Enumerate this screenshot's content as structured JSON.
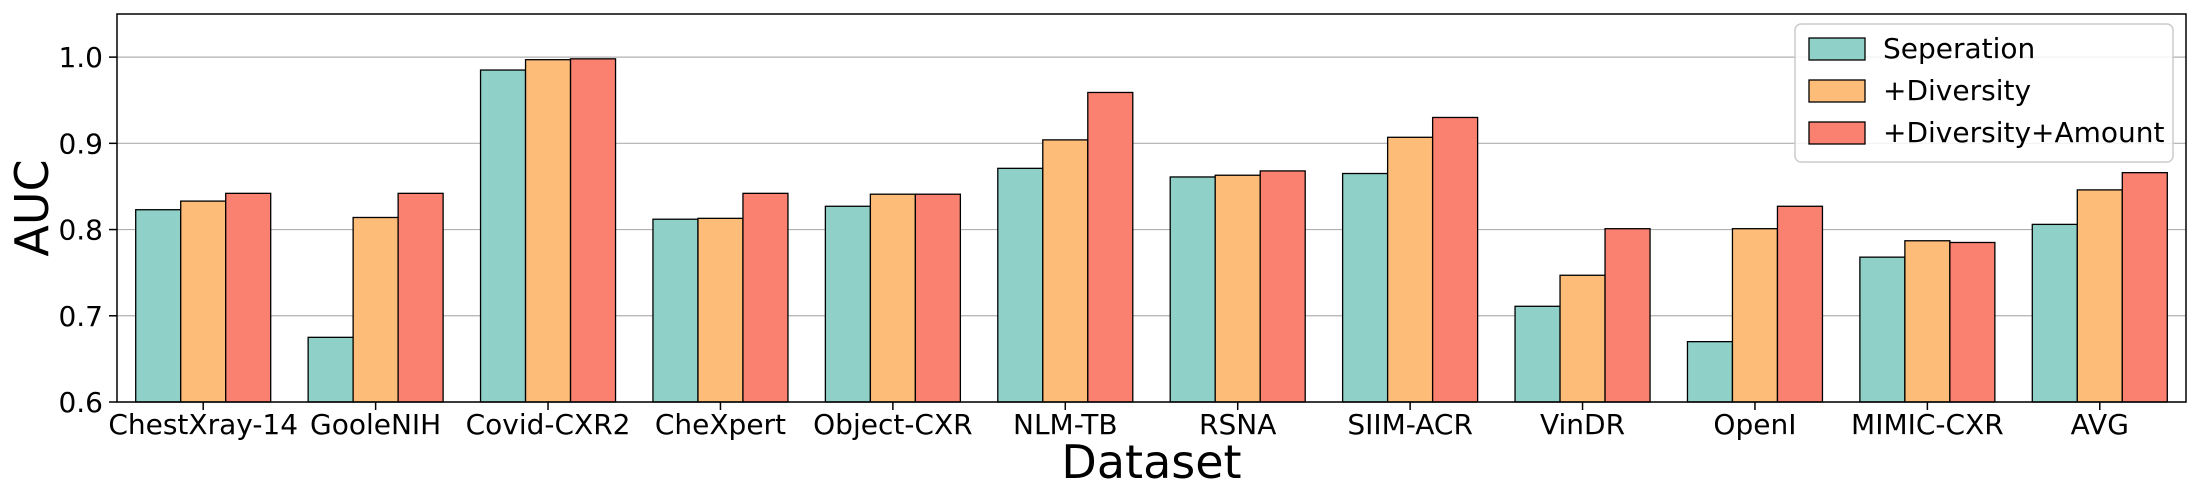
{
  "chart_data": {
    "type": "bar",
    "title": "",
    "xlabel": "Dataset",
    "ylabel": "AUC",
    "ylim": [
      0.6,
      1.05
    ],
    "yticks": [
      0.6,
      0.7,
      0.8,
      0.9,
      1.0
    ],
    "ytick_labels": [
      "0.6",
      "0.7",
      "0.8",
      "0.9",
      "1.0"
    ],
    "grid": "horizontal",
    "legend_position": "top-right",
    "categories": [
      "ChestXray-14",
      "GooleNIH",
      "Covid-CXR2",
      "CheXpert",
      "Object-CXR",
      "NLM-TB",
      "RSNA",
      "SIIM-ACR",
      "VinDR",
      "OpenI",
      "MIMIC-CXR",
      "AVG"
    ],
    "series": [
      {
        "name": "Seperation",
        "color": "#8fd0c8",
        "values": [
          0.823,
          0.675,
          0.985,
          0.812,
          0.827,
          0.871,
          0.861,
          0.865,
          0.711,
          0.67,
          0.768,
          0.806
        ]
      },
      {
        "name": "+Diversity",
        "color": "#fdbc78",
        "values": [
          0.833,
          0.814,
          0.997,
          0.813,
          0.841,
          0.904,
          0.863,
          0.907,
          0.747,
          0.801,
          0.787,
          0.846
        ]
      },
      {
        "name": "+Diversity+Amount",
        "color": "#fa8070",
        "values": [
          0.842,
          0.842,
          0.998,
          0.842,
          0.841,
          0.959,
          0.868,
          0.93,
          0.801,
          0.827,
          0.785,
          0.866
        ]
      }
    ]
  }
}
